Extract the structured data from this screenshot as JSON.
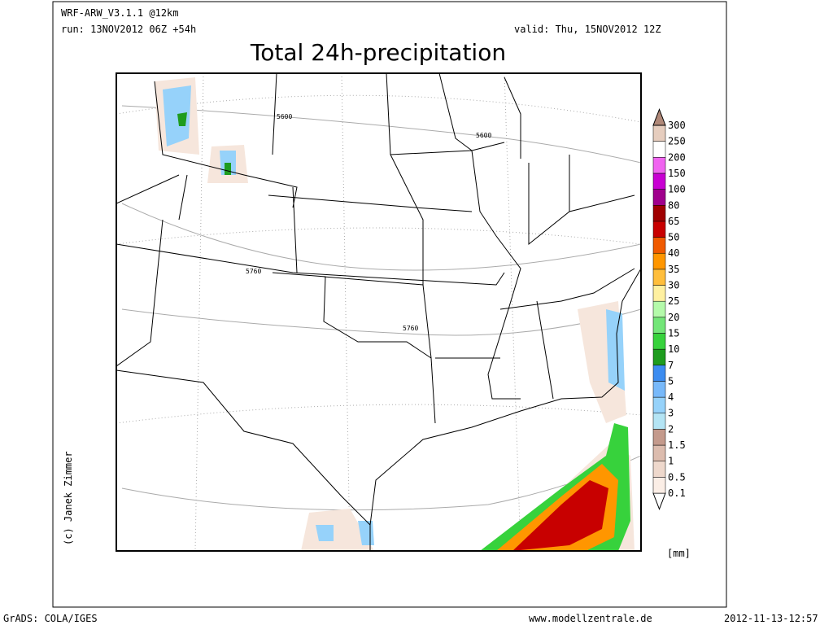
{
  "header": {
    "model": "WRF-ARW_V3.1.1 @12km",
    "run": "run: 13NOV2012 06Z +54h",
    "valid": "valid: Thu, 15NOV2012 12Z",
    "title": "Total 24h-precipitation"
  },
  "map": {
    "contour_labels": [
      "5600",
      "5600",
      "5760",
      "5760"
    ],
    "credit": "(c) Janek Zimmer"
  },
  "legend": {
    "unit": "[mm]",
    "levels": [
      0.1,
      0.5,
      1,
      1.5,
      2,
      3,
      4,
      5,
      7,
      10,
      15,
      20,
      25,
      30,
      35,
      40,
      50,
      65,
      80,
      100,
      150,
      200,
      250,
      300
    ],
    "colors": [
      "#ffffff",
      "#fbeee6",
      "#eed8cc",
      "#dcbcae",
      "#c49a8c",
      "#b4e4f4",
      "#96d2fa",
      "#78b9fa",
      "#3c8cf0",
      "#1e9c1e",
      "#37d23c",
      "#73e678",
      "#b4faaa",
      "#fff0a0",
      "#ffbe3c",
      "#ff9600",
      "#f05a00",
      "#c80000",
      "#a00000",
      "#a0008c",
      "#c800d2",
      "#f064f0",
      "#ffffff",
      "#e6cdbe",
      "#b08878"
    ]
  },
  "footer": {
    "left": "GrADS: COLA/IGES",
    "center": "www.modellzentrale.de",
    "right": "2012-11-13-12:57"
  }
}
